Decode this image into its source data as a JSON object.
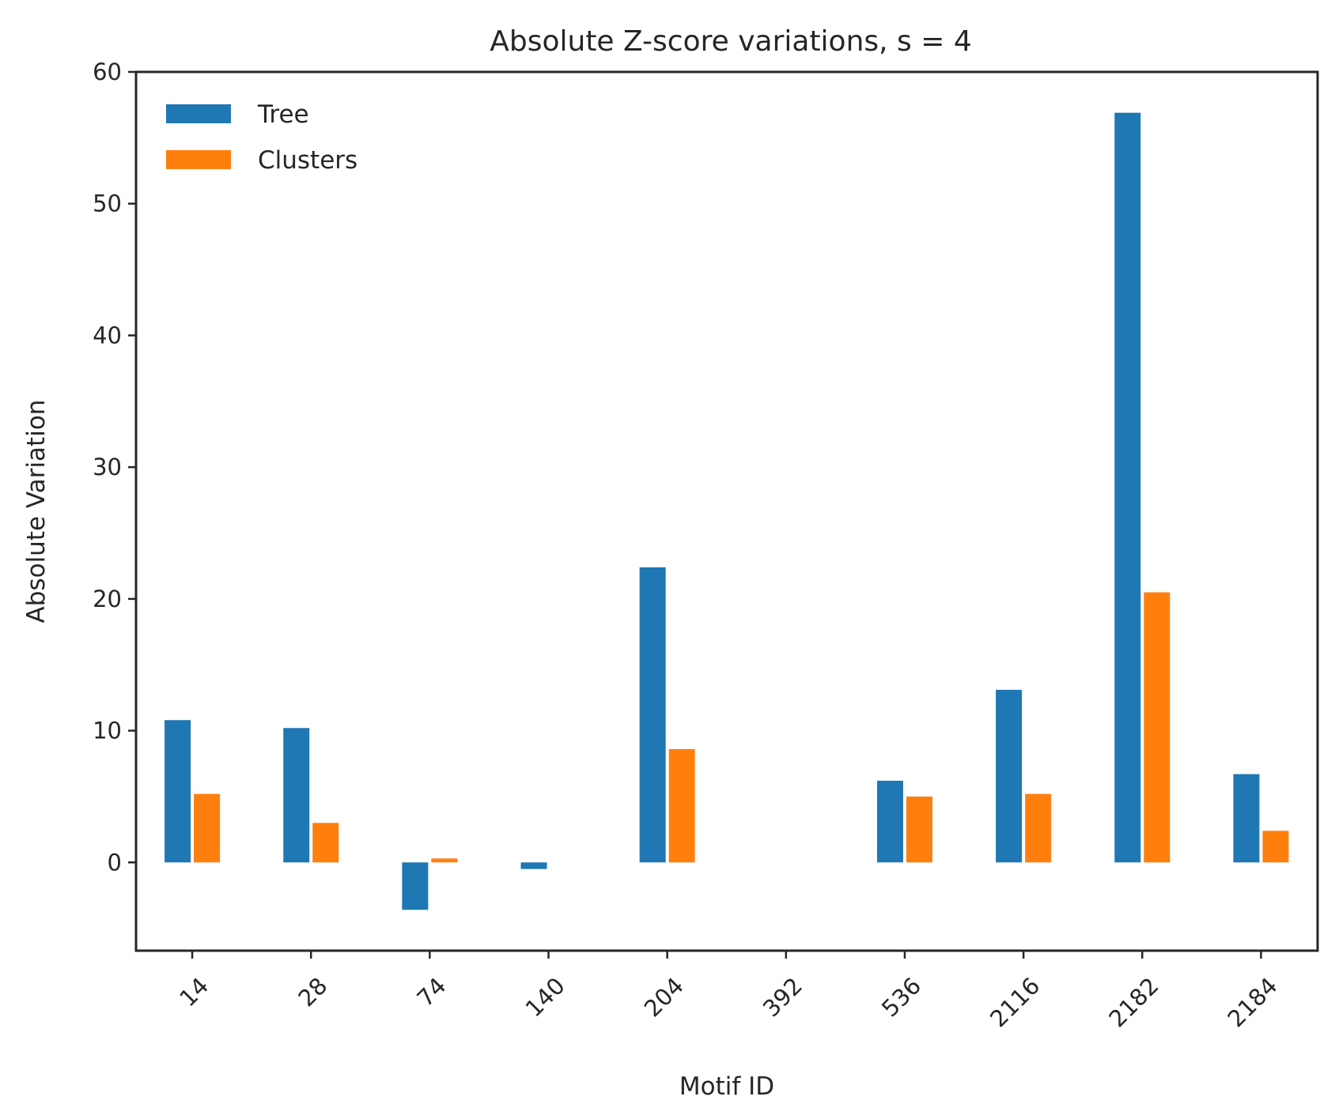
{
  "chart_data": {
    "type": "bar",
    "title": "Absolute Z-score variations, s = 4",
    "xlabel": "Motif ID",
    "ylabel": "Absolute Variation",
    "categories": [
      "14",
      "28",
      "74",
      "140",
      "204",
      "392",
      "536",
      "2116",
      "2182",
      "2184"
    ],
    "series": [
      {
        "name": "Tree",
        "color": "#1f77b4",
        "values": [
          10.8,
          10.2,
          -3.6,
          -0.5,
          22.4,
          0.0,
          6.2,
          13.1,
          56.9,
          6.7
        ]
      },
      {
        "name": "Clusters",
        "color": "#ff7f0e",
        "values": [
          5.2,
          3.0,
          0.3,
          0.0,
          8.6,
          0.0,
          5.0,
          5.2,
          20.5,
          2.4
        ]
      }
    ],
    "ylim": [
      -6.7,
      60
    ],
    "yticks": [
      0,
      10,
      20,
      30,
      40,
      50,
      60
    ],
    "xtick_rotation": 45,
    "grid": false,
    "legend": "top-left"
  }
}
